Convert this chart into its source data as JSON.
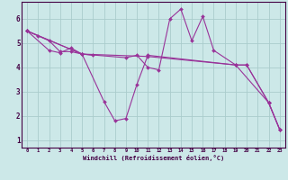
{
  "bg_color": "#cce8e8",
  "line_color": "#993399",
  "grid_color": "#aacccc",
  "xlabel": "Windchill (Refroidissement éolien,°C)",
  "ylabel_ticks": [
    1,
    2,
    3,
    4,
    5,
    6
  ],
  "xtick_labels": [
    "0",
    "1",
    "2",
    "3",
    "4",
    "5",
    "6",
    "7",
    "8",
    "9",
    "10",
    "11",
    "12",
    "13",
    "14",
    "15",
    "16",
    "17",
    "18",
    "19",
    "20",
    "21",
    "22",
    "23"
  ],
  "xlim": [
    -0.5,
    23.5
  ],
  "ylim": [
    0.7,
    6.7
  ],
  "series": [
    {
      "x": [
        0,
        1,
        2,
        3,
        4,
        5,
        6
      ],
      "y": [
        5.5,
        5.3,
        5.1,
        4.65,
        4.65,
        4.55,
        4.5
      ]
    },
    {
      "x": [
        0,
        2,
        3,
        4,
        5,
        7,
        8,
        9,
        10,
        11,
        19,
        20,
        22,
        23
      ],
      "y": [
        5.5,
        4.7,
        4.6,
        4.8,
        4.55,
        2.6,
        1.8,
        1.9,
        3.3,
        4.5,
        4.1,
        4.1,
        2.55,
        1.45
      ]
    },
    {
      "x": [
        0,
        5,
        9,
        10,
        11,
        12,
        13,
        14,
        15,
        16,
        17,
        19,
        20,
        22,
        23
      ],
      "y": [
        5.5,
        4.55,
        4.4,
        4.5,
        4.0,
        3.9,
        6.0,
        6.4,
        5.1,
        6.1,
        4.7,
        4.1,
        4.1,
        2.55,
        1.45
      ]
    },
    {
      "x": [
        0,
        5,
        11,
        19,
        22,
        23
      ],
      "y": [
        5.5,
        4.55,
        4.45,
        4.1,
        2.55,
        1.45
      ]
    }
  ],
  "figsize": [
    3.2,
    2.0
  ],
  "dpi": 100
}
